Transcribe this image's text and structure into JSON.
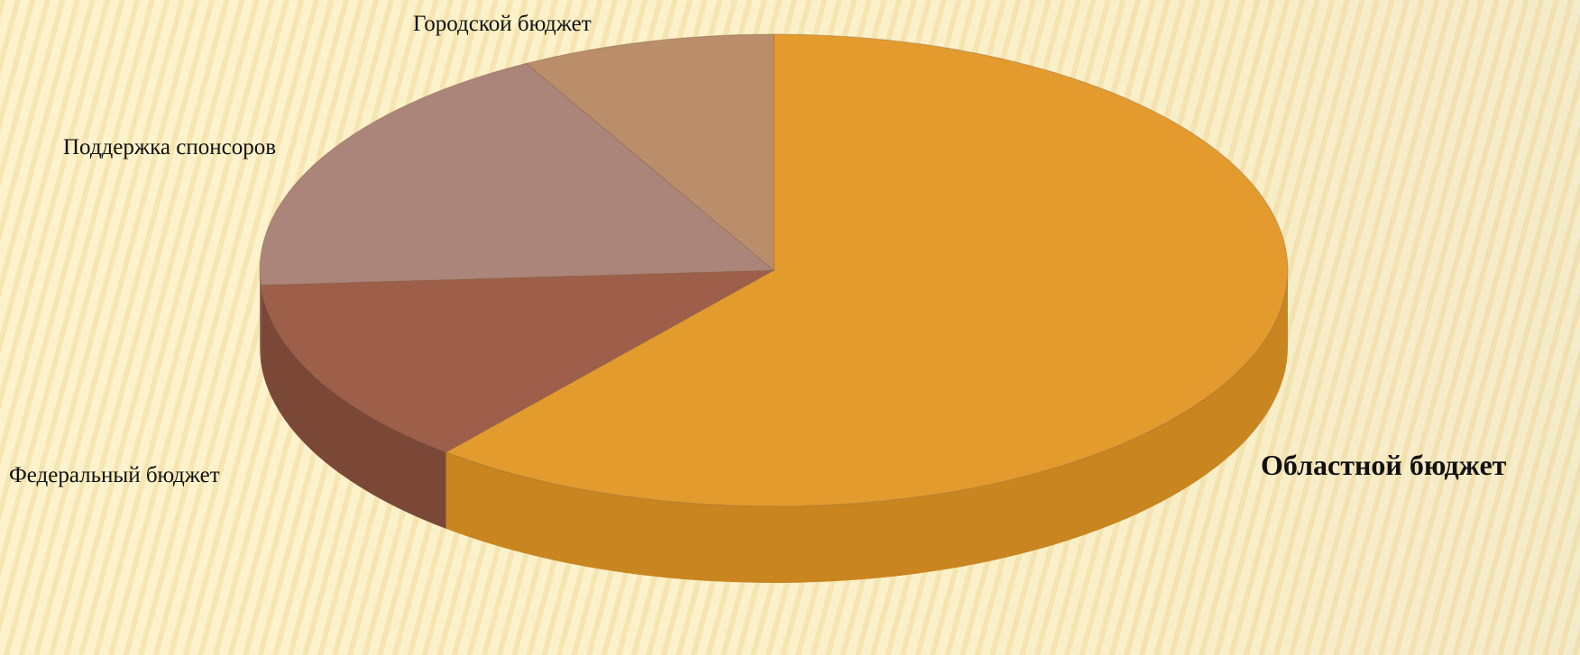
{
  "chart_data": {
    "type": "pie",
    "three_d": true,
    "start_angle_deg": 0,
    "direction": "clockwise",
    "slices": [
      {
        "label": "Областной бюджет",
        "value": 61,
        "color": "#e39b2e",
        "side_color": "#c9851f",
        "label_bold": true
      },
      {
        "label": "Федеральный бюджет",
        "value": 13,
        "color": "#9d5f4a",
        "side_color": "#7b4838",
        "label_bold": false
      },
      {
        "label": "Поддержка спонсоров",
        "value": 18,
        "color": "#ac857a",
        "side_color": "#8f6c62",
        "label_bold": false
      },
      {
        "label": "Городской бюджет",
        "value": 8,
        "color": "#ba8e6a",
        "side_color": "#9c7656",
        "label_bold": false
      }
    ]
  }
}
